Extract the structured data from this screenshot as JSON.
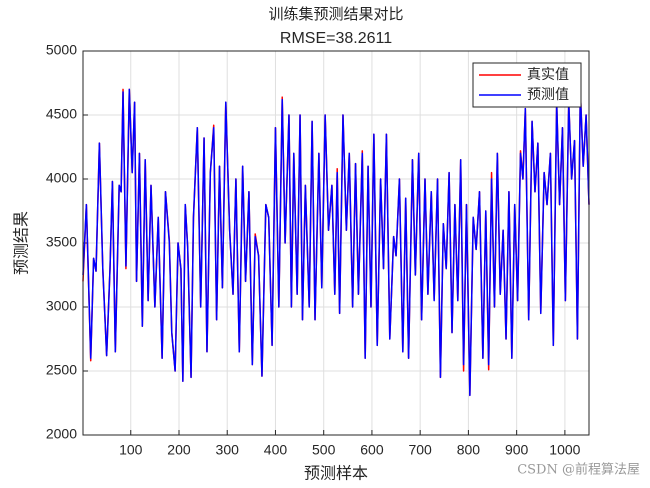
{
  "chart_data": {
    "type": "line",
    "title": "训练集预测结果对比",
    "subtitle": "RMSE=38.2611",
    "x_label": "预测样本",
    "y_label": "预测结果",
    "watermark": "CSDN @前程算法屋",
    "xlim": [
      1,
      1050
    ],
    "xticks": [
      100,
      200,
      300,
      400,
      500,
      600,
      700,
      800,
      900,
      1000
    ],
    "ylim": [
      2000,
      5000
    ],
    "yticks": [
      2000,
      2500,
      3000,
      3500,
      4000,
      4500,
      5000
    ],
    "grid": true,
    "legend": "northeast",
    "x": [
      1,
      8,
      17,
      23,
      28,
      35,
      42,
      50,
      57,
      62,
      68,
      76,
      80,
      84,
      90,
      97,
      103,
      108,
      112,
      118,
      124,
      130,
      136,
      142,
      150,
      157,
      165,
      172,
      180,
      185,
      192,
      198,
      204,
      208,
      213,
      218,
      225,
      230,
      238,
      245,
      252,
      258,
      265,
      272,
      278,
      284,
      290,
      297,
      305,
      312,
      318,
      325,
      332,
      338,
      345,
      352,
      358,
      365,
      372,
      380,
      386,
      393,
      400,
      407,
      414,
      420,
      428,
      433,
      438,
      445,
      451,
      456,
      462,
      470,
      476,
      482,
      490,
      496,
      503,
      510,
      517,
      523,
      528,
      533,
      540,
      547,
      553,
      560,
      566,
      572,
      580,
      586,
      592,
      598,
      604,
      611,
      618,
      624,
      630,
      637,
      645,
      650,
      657,
      664,
      670,
      676,
      684,
      690,
      697,
      703,
      710,
      716,
      723,
      729,
      736,
      742,
      748,
      754,
      760,
      766,
      772,
      778,
      784,
      790,
      796,
      803,
      810,
      816,
      823,
      830,
      836,
      842,
      848,
      854,
      860,
      866,
      872,
      878,
      884,
      890,
      896,
      902,
      908,
      913,
      918,
      925,
      932,
      938,
      944,
      950,
      957,
      963,
      970,
      976,
      983,
      989,
      995,
      1001,
      1008,
      1014,
      1020,
      1026,
      1032,
      1038,
      1044,
      1050
    ],
    "series": [
      {
        "name": "真实值",
        "color": "#ff0000",
        "values": [
          3200,
          3800,
          2580,
          3380,
          3280,
          4280,
          3300,
          2620,
          3300,
          3980,
          2650,
          3950,
          3900,
          4700,
          3300,
          4700,
          4050,
          4600,
          3200,
          4200,
          2850,
          4150,
          3050,
          3950,
          3000,
          3700,
          2600,
          3900,
          3520,
          2800,
          2500,
          3500,
          3300,
          2420,
          3800,
          3470,
          2450,
          3700,
          4400,
          3000,
          4320,
          2650,
          4050,
          4420,
          2900,
          4100,
          3150,
          4600,
          3600,
          3100,
          4000,
          2650,
          4100,
          3200,
          3900,
          2550,
          3570,
          3400,
          2460,
          3800,
          3700,
          2700,
          4400,
          3000,
          4640,
          3500,
          4500,
          3000,
          4200,
          3100,
          4500,
          2900,
          3950,
          3000,
          4450,
          2900,
          4200,
          3150,
          4500,
          3600,
          3950,
          3100,
          4080,
          2950,
          4500,
          3600,
          4200,
          3000,
          4120,
          3100,
          4220,
          2600,
          4100,
          3000,
          4350,
          2700,
          4000,
          3300,
          4350,
          2750,
          3550,
          3400,
          4000,
          2650,
          3850,
          2600,
          4150,
          3250,
          4200,
          2900,
          4000,
          3100,
          3900,
          3060,
          4000,
          2450,
          3650,
          3300,
          4050,
          2800,
          3800,
          3050,
          4150,
          2500,
          3800,
          2310,
          3700,
          3450,
          3900,
          2600,
          3750,
          2510,
          4050,
          3000,
          4200,
          3100,
          3600,
          2750,
          3900,
          2600,
          3800,
          3050,
          4220,
          4000,
          4550,
          2900,
          4450,
          3900,
          4280,
          2950,
          4050,
          3800,
          4200,
          2700,
          4600,
          3800,
          4400,
          3050,
          4600,
          4000,
          4300,
          2750,
          4690,
          4100,
          4500,
          3800
        ]
      },
      {
        "name": "预测值",
        "color": "#0000ff",
        "values": [
          3250,
          3800,
          2600,
          3380,
          3280,
          4280,
          3300,
          2620,
          3300,
          3980,
          2650,
          3950,
          3900,
          4680,
          3320,
          4700,
          4050,
          4600,
          3200,
          4200,
          2850,
          4150,
          3050,
          3950,
          3000,
          3700,
          2600,
          3900,
          3500,
          2800,
          2500,
          3500,
          3300,
          2420,
          3800,
          3470,
          2450,
          3700,
          4400,
          3000,
          4320,
          2650,
          4050,
          4400,
          2900,
          4100,
          3150,
          4600,
          3600,
          3100,
          4000,
          2650,
          4100,
          3200,
          3900,
          2550,
          3550,
          3400,
          2460,
          3800,
          3700,
          2700,
          4400,
          3000,
          4620,
          3500,
          4500,
          3000,
          4200,
          3100,
          4500,
          2900,
          3950,
          3000,
          4450,
          2900,
          4200,
          3150,
          4500,
          3600,
          3950,
          3100,
          4050,
          2950,
          4500,
          3600,
          4200,
          3000,
          4120,
          3100,
          4200,
          2600,
          4100,
          3000,
          4350,
          2700,
          4000,
          3300,
          4350,
          2750,
          3550,
          3400,
          4000,
          2650,
          3850,
          2600,
          4150,
          3250,
          4200,
          2900,
          4000,
          3100,
          3900,
          3050,
          4000,
          2450,
          3650,
          3300,
          4050,
          2800,
          3800,
          3050,
          4150,
          2550,
          3800,
          2310,
          3700,
          3450,
          3900,
          2600,
          3750,
          2550,
          4000,
          3000,
          4200,
          3100,
          3600,
          2750,
          3900,
          2600,
          3800,
          3050,
          4200,
          4000,
          4550,
          2900,
          4450,
          3900,
          4280,
          2950,
          4050,
          3800,
          4200,
          2700,
          4600,
          3800,
          4400,
          3050,
          4600,
          4000,
          4300,
          2750,
          4690,
          4100,
          4500,
          3800
        ]
      }
    ]
  }
}
